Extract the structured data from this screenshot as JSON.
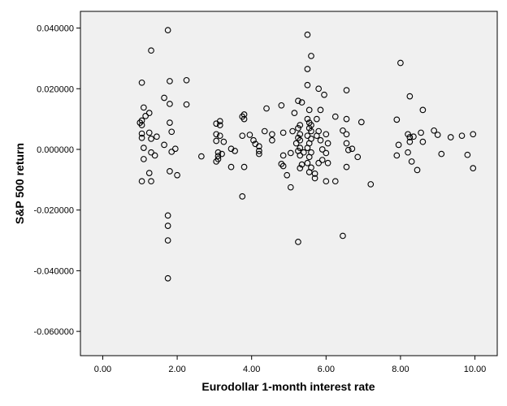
{
  "chart_data": {
    "type": "scatter",
    "title": "",
    "xlabel": "Eurodollar 1-month interest rate",
    "ylabel": "S&P 500 return",
    "xlim": [
      -0.6,
      10.6
    ],
    "ylim": [
      -0.068,
      0.0455
    ],
    "x_ticks": [
      0,
      2,
      4,
      6,
      8,
      10
    ],
    "x_tick_labels": [
      "0.00",
      "2.00",
      "4.00",
      "6.00",
      "8.00",
      "10.00"
    ],
    "y_ticks": [
      0.04,
      0.02,
      0,
      -0.02,
      -0.04,
      -0.06
    ],
    "y_tick_labels": [
      "0.040000",
      "0.020000",
      "0.000000",
      "-0.020000",
      "-0.040000",
      "-0.060000"
    ],
    "grid": false,
    "legend": "none",
    "colors": {
      "plot_background": "#f0f0f0",
      "marker_stroke": "#000000",
      "frame": "#000000"
    },
    "points": [
      [
        1.75,
        0.0393
      ],
      [
        1.3,
        0.0326
      ],
      [
        1.05,
        0.022
      ],
      [
        1.8,
        0.0225
      ],
      [
        2.25,
        0.0228
      ],
      [
        1.65,
        0.017
      ],
      [
        1.8,
        0.015
      ],
      [
        2.25,
        0.0148
      ],
      [
        1.1,
        0.0138
      ],
      [
        1.25,
        0.012
      ],
      [
        1.15,
        0.011
      ],
      [
        1.05,
        0.0095
      ],
      [
        1.0,
        0.0088
      ],
      [
        1.05,
        0.008
      ],
      [
        1.8,
        0.0088
      ],
      [
        1.85,
        0.0058
      ],
      [
        1.25,
        0.0055
      ],
      [
        1.05,
        0.0052
      ],
      [
        1.45,
        0.0042
      ],
      [
        1.05,
        0.0038
      ],
      [
        1.3,
        0.0035
      ],
      [
        1.65,
        0.0015
      ],
      [
        1.1,
        0.0005
      ],
      [
        1.95,
        0.0002
      ],
      [
        1.3,
        -0.001
      ],
      [
        1.85,
        -0.0008
      ],
      [
        1.4,
        -0.002
      ],
      [
        1.1,
        -0.0032
      ],
      [
        1.8,
        -0.0072
      ],
      [
        1.25,
        -0.0078
      ],
      [
        2.0,
        -0.0085
      ],
      [
        1.05,
        -0.0105
      ],
      [
        1.3,
        -0.0105
      ],
      [
        1.75,
        -0.0218
      ],
      [
        1.75,
        -0.0252
      ],
      [
        1.75,
        -0.03
      ],
      [
        1.75,
        -0.0425
      ],
      [
        2.65,
        -0.0023
      ],
      [
        3.05,
        0.0085
      ],
      [
        3.15,
        0.0093
      ],
      [
        3.15,
        0.008
      ],
      [
        3.05,
        0.005
      ],
      [
        3.15,
        0.0045
      ],
      [
        3.05,
        0.0028
      ],
      [
        3.25,
        0.0025
      ],
      [
        3.45,
        0.0002
      ],
      [
        3.1,
        -0.001
      ],
      [
        3.2,
        -0.0015
      ],
      [
        3.1,
        -0.0022
      ],
      [
        3.1,
        -0.0032
      ],
      [
        3.05,
        -0.004
      ],
      [
        3.45,
        -0.0058
      ],
      [
        3.55,
        -0.0005
      ],
      [
        3.75,
        0.0108
      ],
      [
        3.8,
        0.0115
      ],
      [
        3.8,
        0.01
      ],
      [
        3.75,
        0.0045
      ],
      [
        3.95,
        0.0048
      ],
      [
        4.05,
        0.003
      ],
      [
        4.1,
        0.0018
      ],
      [
        4.2,
        0.001
      ],
      [
        4.2,
        -0.0005
      ],
      [
        4.2,
        -0.0015
      ],
      [
        3.8,
        -0.0058
      ],
      [
        3.75,
        -0.0155
      ],
      [
        4.4,
        0.0135
      ],
      [
        4.35,
        0.006
      ],
      [
        4.55,
        0.005
      ],
      [
        4.55,
        0.003
      ],
      [
        4.8,
        0.0145
      ],
      [
        4.85,
        0.0055
      ],
      [
        4.85,
        -0.002
      ],
      [
        4.8,
        -0.0048
      ],
      [
        4.85,
        -0.0055
      ],
      [
        4.95,
        -0.0085
      ],
      [
        5.05,
        -0.0125
      ],
      [
        5.05,
        -0.0012
      ],
      [
        5.1,
        0.006
      ],
      [
        5.15,
        0.012
      ],
      [
        5.25,
        0.016
      ],
      [
        5.35,
        0.0155
      ],
      [
        5.3,
        0.008
      ],
      [
        5.25,
        0.007
      ],
      [
        5.3,
        0.005
      ],
      [
        5.25,
        0.0038
      ],
      [
        5.3,
        0.003
      ],
      [
        5.2,
        0.002
      ],
      [
        5.3,
        0.0005
      ],
      [
        5.25,
        -0.0005
      ],
      [
        5.3,
        -0.002
      ],
      [
        5.35,
        -0.005
      ],
      [
        5.3,
        -0.0062
      ],
      [
        5.4,
        -0.001
      ],
      [
        5.25,
        -0.0305
      ],
      [
        5.5,
        0.0378
      ],
      [
        5.6,
        0.0308
      ],
      [
        5.5,
        0.0265
      ],
      [
        5.5,
        0.0212
      ],
      [
        5.55,
        0.013
      ],
      [
        5.5,
        0.01
      ],
      [
        5.55,
        0.0088
      ],
      [
        5.6,
        0.008
      ],
      [
        5.55,
        0.007
      ],
      [
        5.6,
        0.006
      ],
      [
        5.5,
        0.0045
      ],
      [
        5.6,
        0.0035
      ],
      [
        5.55,
        0.002
      ],
      [
        5.5,
        0.0005
      ],
      [
        5.6,
        -0.001
      ],
      [
        5.55,
        -0.0025
      ],
      [
        5.5,
        -0.0045
      ],
      [
        5.6,
        -0.006
      ],
      [
        5.55,
        -0.0075
      ],
      [
        5.7,
        -0.008
      ],
      [
        5.7,
        -0.0095
      ],
      [
        5.75,
        0.0045
      ],
      [
        5.8,
        0.02
      ],
      [
        5.85,
        0.013
      ],
      [
        5.75,
        0.01
      ],
      [
        5.8,
        0.006
      ],
      [
        5.85,
        0.003
      ],
      [
        5.9,
        0.0
      ],
      [
        5.9,
        -0.0035
      ],
      [
        5.8,
        -0.0045
      ],
      [
        5.95,
        0.018
      ],
      [
        6.0,
        0.005
      ],
      [
        6.05,
        0.002
      ],
      [
        6.0,
        -0.0012
      ],
      [
        6.05,
        -0.0045
      ],
      [
        6.0,
        -0.0105
      ],
      [
        6.25,
        0.0108
      ],
      [
        6.25,
        -0.0105
      ],
      [
        6.45,
        0.0062
      ],
      [
        6.55,
        0.0195
      ],
      [
        6.55,
        0.01
      ],
      [
        6.55,
        0.005
      ],
      [
        6.55,
        0.002
      ],
      [
        6.6,
        -0.0002
      ],
      [
        6.7,
        0.0002
      ],
      [
        6.55,
        -0.0058
      ],
      [
        6.85,
        -0.0025
      ],
      [
        6.95,
        0.009
      ],
      [
        6.45,
        -0.0285
      ],
      [
        7.2,
        -0.0115
      ],
      [
        7.9,
        0.0098
      ],
      [
        8.0,
        0.0285
      ],
      [
        7.95,
        0.0015
      ],
      [
        7.9,
        -0.002
      ],
      [
        8.25,
        0.0175
      ],
      [
        8.2,
        0.005
      ],
      [
        8.25,
        0.004
      ],
      [
        8.25,
        0.0025
      ],
      [
        8.2,
        -0.001
      ],
      [
        8.3,
        -0.004
      ],
      [
        8.45,
        -0.0068
      ],
      [
        8.55,
        0.0055
      ],
      [
        8.6,
        0.013
      ],
      [
        8.6,
        0.0025
      ],
      [
        8.35,
        0.0042
      ],
      [
        8.9,
        0.0062
      ],
      [
        9.0,
        0.0048
      ],
      [
        9.1,
        -0.0015
      ],
      [
        9.35,
        0.004
      ],
      [
        9.65,
        0.0045
      ],
      [
        9.8,
        -0.0018
      ],
      [
        9.95,
        0.005
      ],
      [
        9.95,
        -0.0062
      ]
    ]
  }
}
